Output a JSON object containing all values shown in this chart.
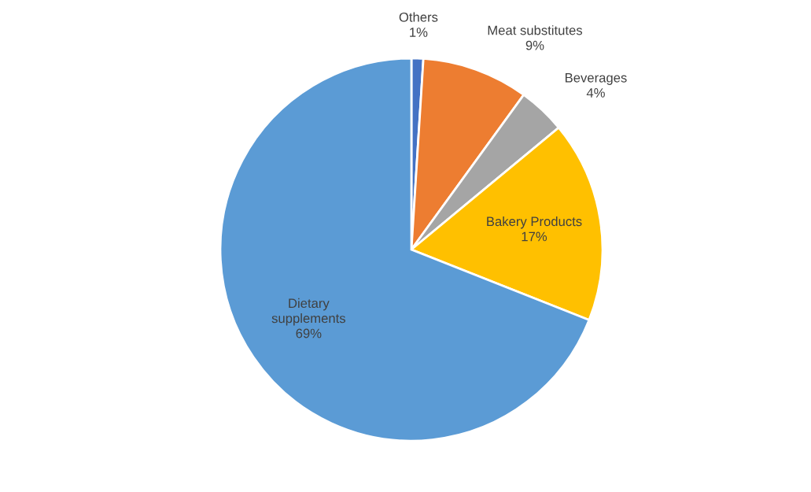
{
  "chart_data": {
    "type": "pie",
    "categories": [
      "Others",
      "Meat substitutes",
      "Beverages",
      "Bakery Products",
      "Dietary\nsupplements"
    ],
    "values": [
      1,
      9,
      4,
      17,
      69
    ],
    "colors": [
      "#4472c4",
      "#ed7d31",
      "#a5a5a5",
      "#ffc000",
      "#5b9bd5"
    ],
    "value_labels": [
      "1%",
      "9%",
      "4%",
      "17%",
      "69%"
    ],
    "legend": false
  }
}
